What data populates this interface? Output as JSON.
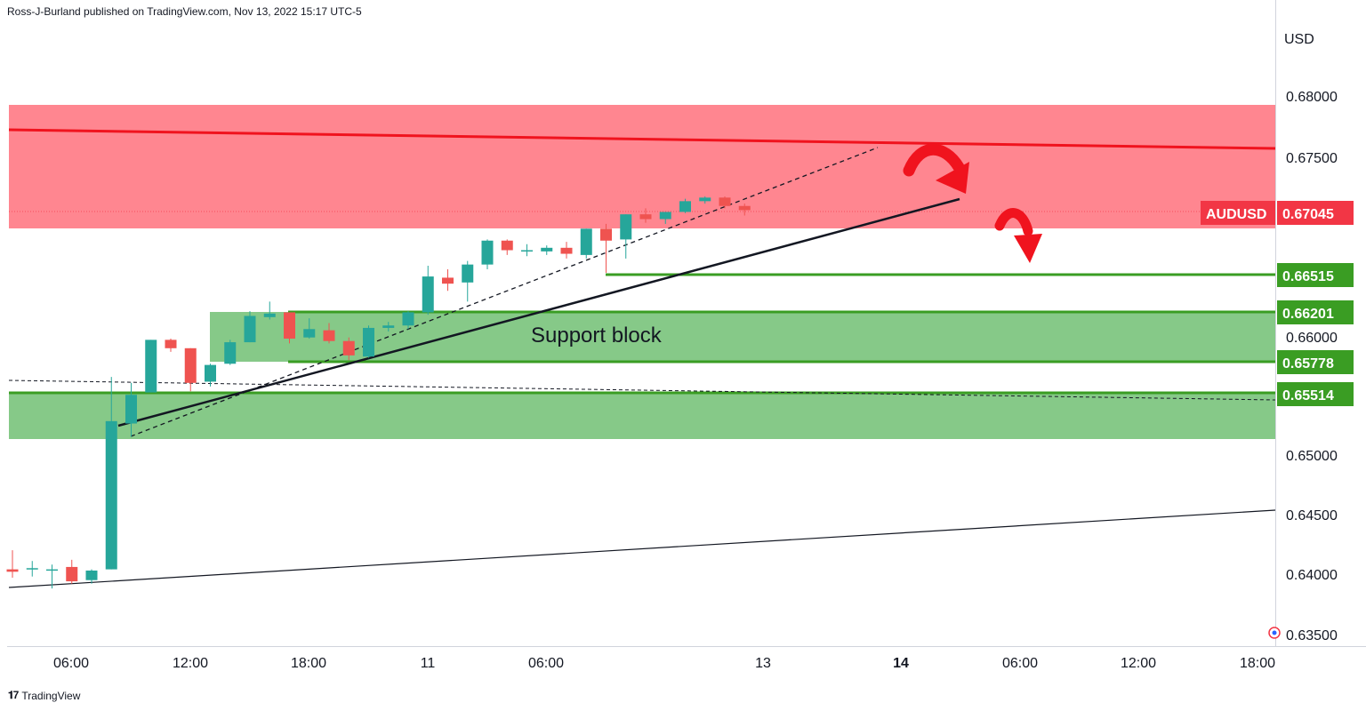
{
  "header": {
    "published_text": "Ross-J-Burland published on TradingView.com, Nov 13, 2022 15:17 UTC-5"
  },
  "footer": {
    "logo_icon": "tradingview-logo-icon",
    "brand": "TradingView"
  },
  "colors": {
    "up": "#26a69a",
    "down": "#ef5350",
    "resistance_zone": "#ff6b77",
    "support_zone": "#4caf50",
    "green_level": "#3a9d23",
    "red_line": "#f0131e",
    "symbol_label_bg": "#f23645",
    "level_label_bg": "#3a9d23"
  },
  "chart_data": {
    "type": "candlestick",
    "symbol": "AUDUSD",
    "currency_label": "USD",
    "last_price": "0.67045",
    "y_ticks": [
      "0.68000",
      "0.67500",
      "0.66000",
      "0.65000",
      "0.64500",
      "0.64000",
      "0.63500"
    ],
    "x_ticks": [
      {
        "label": "06:00",
        "bold": false
      },
      {
        "label": "12:00",
        "bold": false
      },
      {
        "label": "18:00",
        "bold": false
      },
      {
        "label": "11",
        "bold": false
      },
      {
        "label": "06:00",
        "bold": false
      },
      {
        "label": "13",
        "bold": false
      },
      {
        "label": "14",
        "bold": true
      },
      {
        "label": "06:00",
        "bold": false
      },
      {
        "label": "12:00",
        "bold": false
      },
      {
        "label": "18:00",
        "bold": false
      }
    ],
    "levels": [
      {
        "price": 0.66515,
        "label": "0.66515"
      },
      {
        "price": 0.66201,
        "label": "0.66201"
      },
      {
        "price": 0.65778,
        "label": "0.65778"
      },
      {
        "price": 0.65514,
        "label": "0.65514"
      }
    ],
    "annotations": [
      "Support block"
    ],
    "zones": [
      {
        "name": "resistance",
        "from": 0.6691,
        "to": 0.6793
      },
      {
        "name": "support-block",
        "from": 0.6578,
        "to": 0.6622
      },
      {
        "name": "lower-support",
        "from": 0.6513,
        "to": 0.6551
      }
    ],
    "candles": [
      {
        "o": 0.6404,
        "h": 0.642,
        "l": 0.6397,
        "c": 0.6402
      },
      {
        "o": 0.6405,
        "h": 0.6411,
        "l": 0.6398,
        "c": 0.6405
      },
      {
        "o": 0.6403,
        "h": 0.6408,
        "l": 0.6388,
        "c": 0.6404
      },
      {
        "o": 0.6406,
        "h": 0.6412,
        "l": 0.6392,
        "c": 0.6394
      },
      {
        "o": 0.6395,
        "h": 0.6404,
        "l": 0.6392,
        "c": 0.6403
      },
      {
        "o": 0.6404,
        "h": 0.6565,
        "l": 0.6404,
        "c": 0.6528
      },
      {
        "o": 0.6526,
        "h": 0.656,
        "l": 0.6515,
        "c": 0.655
      },
      {
        "o": 0.6552,
        "h": 0.6596,
        "l": 0.6552,
        "c": 0.6596
      },
      {
        "o": 0.6596,
        "h": 0.6597,
        "l": 0.6586,
        "c": 0.6589
      },
      {
        "o": 0.6589,
        "h": 0.6589,
        "l": 0.6553,
        "c": 0.656
      },
      {
        "o": 0.6561,
        "h": 0.6576,
        "l": 0.6557,
        "c": 0.6575
      },
      {
        "o": 0.6576,
        "h": 0.6596,
        "l": 0.6575,
        "c": 0.6594
      },
      {
        "o": 0.6594,
        "h": 0.662,
        "l": 0.6594,
        "c": 0.6616
      },
      {
        "o": 0.6615,
        "h": 0.6628,
        "l": 0.6613,
        "c": 0.6618
      },
      {
        "o": 0.6619,
        "h": 0.6619,
        "l": 0.6593,
        "c": 0.6597
      },
      {
        "o": 0.6598,
        "h": 0.6614,
        "l": 0.6597,
        "c": 0.6605
      },
      {
        "o": 0.6604,
        "h": 0.661,
        "l": 0.6593,
        "c": 0.6595
      },
      {
        "o": 0.6595,
        "h": 0.6598,
        "l": 0.6579,
        "c": 0.6583
      },
      {
        "o": 0.6582,
        "h": 0.6608,
        "l": 0.6581,
        "c": 0.6606
      },
      {
        "o": 0.6606,
        "h": 0.6611,
        "l": 0.6603,
        "c": 0.6608
      },
      {
        "o": 0.6608,
        "h": 0.662,
        "l": 0.6605,
        "c": 0.6619
      },
      {
        "o": 0.6619,
        "h": 0.6658,
        "l": 0.6617,
        "c": 0.6649
      },
      {
        "o": 0.6648,
        "h": 0.6655,
        "l": 0.6637,
        "c": 0.6643
      },
      {
        "o": 0.6644,
        "h": 0.6662,
        "l": 0.6628,
        "c": 0.6659
      },
      {
        "o": 0.6659,
        "h": 0.668,
        "l": 0.6655,
        "c": 0.6679
      },
      {
        "o": 0.6679,
        "h": 0.668,
        "l": 0.6667,
        "c": 0.6671
      },
      {
        "o": 0.6671,
        "h": 0.6676,
        "l": 0.6666,
        "c": 0.6671
      },
      {
        "o": 0.667,
        "h": 0.6675,
        "l": 0.6667,
        "c": 0.6673
      },
      {
        "o": 0.6673,
        "h": 0.6678,
        "l": 0.6664,
        "c": 0.6668
      },
      {
        "o": 0.6667,
        "h": 0.6689,
        "l": 0.6664,
        "c": 0.6689
      },
      {
        "o": 0.6689,
        "h": 0.6693,
        "l": 0.6652,
        "c": 0.6679
      },
      {
        "o": 0.668,
        "h": 0.6701,
        "l": 0.6664,
        "c": 0.6701
      },
      {
        "o": 0.6701,
        "h": 0.6706,
        "l": 0.6694,
        "c": 0.6697
      },
      {
        "o": 0.6697,
        "h": 0.6703,
        "l": 0.6693,
        "c": 0.6703
      },
      {
        "o": 0.6703,
        "h": 0.6714,
        "l": 0.6702,
        "c": 0.6712
      },
      {
        "o": 0.6712,
        "h": 0.6716,
        "l": 0.671,
        "c": 0.6715
      },
      {
        "o": 0.6715,
        "h": 0.6716,
        "l": 0.6706,
        "c": 0.6708
      },
      {
        "o": 0.6708,
        "h": 0.671,
        "l": 0.67,
        "c": 0.67045
      }
    ]
  }
}
